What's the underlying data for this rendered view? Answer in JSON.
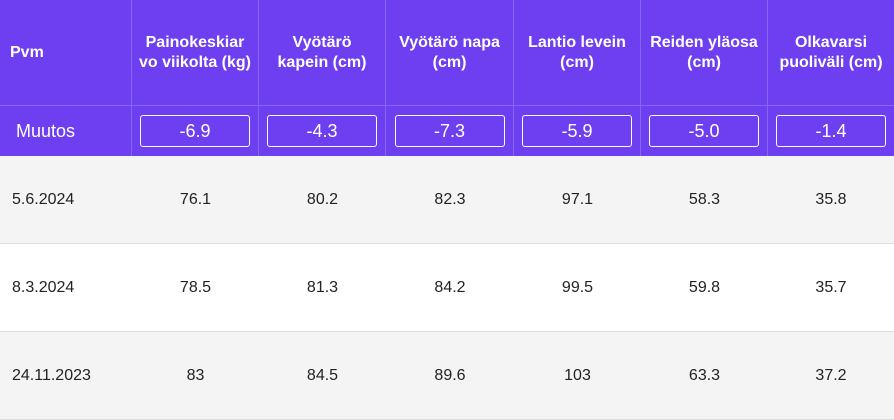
{
  "table": {
    "headers": [
      "Pvm",
      "Painokeskiar vo viikolta (kg)",
      "Vyötärö kapein (cm)",
      "Vyötärö napa (cm)",
      "Lantio levein (cm)",
      "Reiden yläosa (cm)",
      "Olkavarsi puoliväli (cm)"
    ],
    "change_label": "Muutos",
    "changes": [
      "-6.9",
      "-4.3",
      "-7.3",
      "-5.9",
      "-5.0",
      "-1.4"
    ],
    "rows": [
      [
        "5.6.2024",
        "76.1",
        "80.2",
        "82.3",
        "97.1",
        "58.3",
        "35.8"
      ],
      [
        "8.3.2024",
        "78.5",
        "81.3",
        "84.2",
        "99.5",
        "59.8",
        "35.7"
      ],
      [
        "24.11.2023",
        "83",
        "84.5",
        "89.6",
        "103",
        "63.3",
        "37.2"
      ]
    ]
  },
  "colors": {
    "header_bg": "#6d3ff0",
    "header_text": "#ffffff",
    "row_alt_bg": "#f4f4f4"
  }
}
